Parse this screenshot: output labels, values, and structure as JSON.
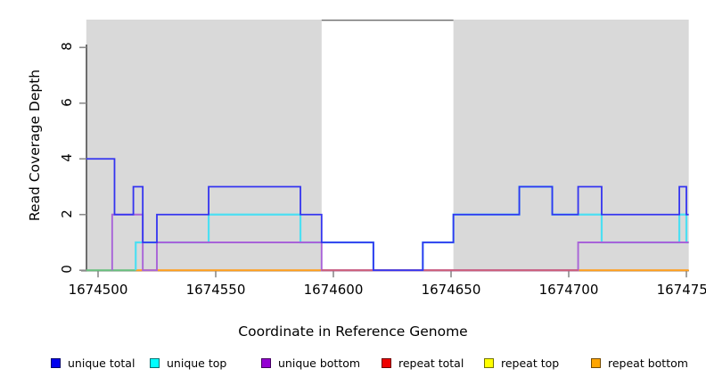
{
  "chart_data": {
    "type": "line",
    "subtype": "step-coverage",
    "title": "",
    "xlabel": "Coordinate in Reference Genome",
    "ylabel": "Read Coverage Depth",
    "xlim": [
      1674495,
      1674751
    ],
    "ylim": [
      0,
      9
    ],
    "x_ticks": [
      {
        "value": 1674500,
        "label": "1674500"
      },
      {
        "value": 1674550,
        "label": "1674550"
      },
      {
        "value": 1674600,
        "label": "1674600"
      },
      {
        "value": 1674650,
        "label": "1674650"
      },
      {
        "value": 1674700,
        "label": "1674700"
      },
      {
        "value": 1674750,
        "label": "1674750"
      }
    ],
    "y_ticks": [
      {
        "value": 0,
        "label": "0"
      },
      {
        "value": 2,
        "label": "2"
      },
      {
        "value": 4,
        "label": "4"
      },
      {
        "value": 6,
        "label": "6"
      },
      {
        "value": 8,
        "label": "8"
      }
    ],
    "grid": false,
    "shaded_regions": [
      {
        "from": 1674495,
        "to": 1674595,
        "color": "#d9d9d9"
      },
      {
        "from": 1674651,
        "to": 1674751,
        "color": "#d9d9d9"
      }
    ],
    "gap_top_line": {
      "from": 1674595,
      "to": 1674651,
      "at_value": 9,
      "color": "#6e6e6e"
    },
    "series": [
      {
        "name": "unique total",
        "line_color": "#3434f0",
        "steps": [
          [
            1674495,
            4
          ],
          [
            1674507,
            2
          ],
          [
            1674515,
            3
          ],
          [
            1674519,
            1
          ],
          [
            1674525,
            2
          ],
          [
            1674547,
            3
          ],
          [
            1674586,
            2
          ],
          [
            1674595,
            1
          ],
          [
            1674617,
            0
          ],
          [
            1674638,
            1
          ],
          [
            1674651,
            2
          ],
          [
            1674679,
            3
          ],
          [
            1674693,
            2
          ],
          [
            1674704,
            3
          ],
          [
            1674714,
            2
          ],
          [
            1674747,
            3
          ],
          [
            1674750,
            2
          ],
          [
            1674751,
            2
          ]
        ]
      },
      {
        "name": "unique top",
        "line_color": "#4cdff2",
        "steps": [
          [
            1674516,
            0
          ],
          [
            1674516,
            1
          ],
          [
            1674547,
            2
          ],
          [
            1674586,
            1
          ],
          [
            1674617,
            0
          ],
          [
            1674638,
            1
          ],
          [
            1674651,
            2
          ],
          [
            1674679,
            3
          ],
          [
            1674693,
            2
          ],
          [
            1674714,
            1
          ],
          [
            1674747,
            2
          ],
          [
            1674750,
            1
          ],
          [
            1674751,
            1
          ]
        ]
      },
      {
        "name": "unique bottom",
        "line_color": "#a863d8",
        "steps": [
          [
            1674506,
            0
          ],
          [
            1674506,
            2
          ],
          [
            1674519,
            0
          ],
          [
            1674525,
            1
          ],
          [
            1674595,
            0
          ],
          [
            1674704,
            1
          ],
          [
            1674751,
            1
          ]
        ]
      },
      {
        "name": "repeat total",
        "line_color": "#cc5c78",
        "steps": [],
        "note_visible_at_zero": [
          1674595,
          1674704
        ]
      },
      {
        "name": "repeat top",
        "line_color": "#ffff00",
        "steps": [],
        "note_visible_at_zero": []
      },
      {
        "name": "repeat bottom",
        "line_color": "#ff9e1b",
        "steps": [],
        "note_visible_at_zero": [
          1674516,
          1674595
        ]
      }
    ],
    "zero_line_segments": [
      {
        "from": 1674495,
        "to": 1674516,
        "color": "#68bf7d",
        "series": "overlapped lines at 0",
        "layer": "under"
      },
      {
        "from": 1674516,
        "to": 1674595,
        "color": "#ff9e1b",
        "series": "repeat bottom",
        "layer": "under"
      },
      {
        "from": 1674595,
        "to": 1674704,
        "color": "#cc5c78",
        "series": "repeat total",
        "layer": "mid"
      },
      {
        "from": 1674704,
        "to": 1674751,
        "color": "#ff9e1b",
        "series": "repeat bottom",
        "layer": "under"
      }
    ],
    "legend": [
      {
        "label": "unique total",
        "color": "#0000ee"
      },
      {
        "label": "unique top",
        "color": "#00ffff"
      },
      {
        "label": "unique bottom",
        "color": "#9400d3"
      },
      {
        "label": "repeat total",
        "color": "#ee0000"
      },
      {
        "label": "repeat top",
        "color": "#ffff00"
      },
      {
        "label": "repeat bottom",
        "color": "#ffa500"
      }
    ],
    "legend_position": "bottom",
    "axis_color": "#2a2a2a",
    "tick_color": "#8a8a8a"
  }
}
